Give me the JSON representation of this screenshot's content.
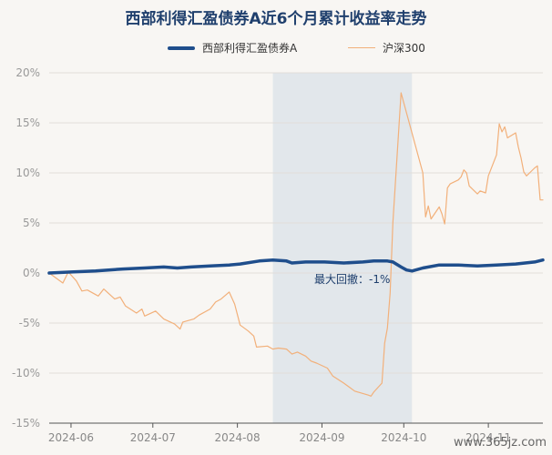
{
  "chart_data": {
    "type": "line",
    "title": "西部利得汇盈债券A近6个月累计收益率走势",
    "ylim": [
      -15,
      20
    ],
    "yticks": [
      -15,
      -10,
      -5,
      0,
      5,
      10,
      15,
      20
    ],
    "ytick_labels": [
      "-15%",
      "-10%",
      "-5%",
      "0%",
      "5%",
      "10%",
      "15%",
      "20%"
    ],
    "xlim": [
      "2024-05-24",
      "2024-11-21"
    ],
    "xticks": [
      "2024-06-01",
      "2024-07-01",
      "2024-08-01",
      "2024-09-01",
      "2024-10-01",
      "2024-11-01"
    ],
    "xtick_labels": [
      "2024-06",
      "2024-07",
      "2024-08",
      "2024-09",
      "2024-10",
      "2024-11"
    ],
    "legend_position": "top-center",
    "grid": "horizontal",
    "series": [
      {
        "name": "西部利得汇盈债券A",
        "color": "#1f4e8c",
        "points": [
          [
            "2024-05-24",
            0.0
          ],
          [
            "2024-06-01",
            0.1
          ],
          [
            "2024-06-10",
            0.2
          ],
          [
            "2024-06-20",
            0.4
          ],
          [
            "2024-06-28",
            0.5
          ],
          [
            "2024-07-05",
            0.6
          ],
          [
            "2024-07-10",
            0.5
          ],
          [
            "2024-07-15",
            0.6
          ],
          [
            "2024-07-22",
            0.7
          ],
          [
            "2024-07-29",
            0.8
          ],
          [
            "2024-08-02",
            0.9
          ],
          [
            "2024-08-09",
            1.2
          ],
          [
            "2024-08-14",
            1.3
          ],
          [
            "2024-08-19",
            1.2
          ],
          [
            "2024-08-21",
            1.0
          ],
          [
            "2024-08-26",
            1.1
          ],
          [
            "2024-09-02",
            1.1
          ],
          [
            "2024-09-09",
            1.0
          ],
          [
            "2024-09-16",
            1.1
          ],
          [
            "2024-09-20",
            1.2
          ],
          [
            "2024-09-25",
            1.2
          ],
          [
            "2024-09-27",
            1.1
          ],
          [
            "2024-09-30",
            0.6
          ],
          [
            "2024-10-02",
            0.3
          ],
          [
            "2024-10-04",
            0.2
          ],
          [
            "2024-10-08",
            0.5
          ],
          [
            "2024-10-14",
            0.8
          ],
          [
            "2024-10-21",
            0.8
          ],
          [
            "2024-10-28",
            0.7
          ],
          [
            "2024-11-04",
            0.8
          ],
          [
            "2024-11-11",
            0.9
          ],
          [
            "2024-11-18",
            1.1
          ],
          [
            "2024-11-21",
            1.3
          ]
        ]
      },
      {
        "name": "沪深300",
        "color": "#f2b07a",
        "points": [
          [
            "2024-05-24",
            0.0
          ],
          [
            "2024-05-27",
            -0.6
          ],
          [
            "2024-05-29",
            -1.0
          ],
          [
            "2024-05-31",
            0.1
          ],
          [
            "2024-06-03",
            -0.8
          ],
          [
            "2024-06-05",
            -1.8
          ],
          [
            "2024-06-07",
            -1.7
          ],
          [
            "2024-06-11",
            -2.3
          ],
          [
            "2024-06-13",
            -1.6
          ],
          [
            "2024-06-17",
            -2.6
          ],
          [
            "2024-06-19",
            -2.4
          ],
          [
            "2024-06-21",
            -3.3
          ],
          [
            "2024-06-25",
            -4.0
          ],
          [
            "2024-06-27",
            -3.6
          ],
          [
            "2024-06-28",
            -4.3
          ],
          [
            "2024-07-02",
            -3.8
          ],
          [
            "2024-07-05",
            -4.6
          ],
          [
            "2024-07-09",
            -5.1
          ],
          [
            "2024-07-11",
            -5.6
          ],
          [
            "2024-07-12",
            -4.9
          ],
          [
            "2024-07-16",
            -4.6
          ],
          [
            "2024-07-18",
            -4.2
          ],
          [
            "2024-07-22",
            -3.6
          ],
          [
            "2024-07-24",
            -2.9
          ],
          [
            "2024-07-26",
            -2.6
          ],
          [
            "2024-07-29",
            -1.9
          ],
          [
            "2024-07-31",
            -3.1
          ],
          [
            "2024-08-02",
            -5.2
          ],
          [
            "2024-08-05",
            -5.8
          ],
          [
            "2024-08-07",
            -6.3
          ],
          [
            "2024-08-08",
            -7.4
          ],
          [
            "2024-08-12",
            -7.3
          ],
          [
            "2024-08-14",
            -7.6
          ],
          [
            "2024-08-16",
            -7.5
          ],
          [
            "2024-08-19",
            -7.6
          ],
          [
            "2024-08-21",
            -8.1
          ],
          [
            "2024-08-23",
            -7.9
          ],
          [
            "2024-08-26",
            -8.3
          ],
          [
            "2024-08-28",
            -8.8
          ],
          [
            "2024-08-30",
            -9.0
          ],
          [
            "2024-09-03",
            -9.5
          ],
          [
            "2024-09-05",
            -10.3
          ],
          [
            "2024-09-09",
            -11.0
          ],
          [
            "2024-09-11",
            -11.4
          ],
          [
            "2024-09-13",
            -11.8
          ],
          [
            "2024-09-18",
            -12.2
          ],
          [
            "2024-09-19",
            -12.3
          ],
          [
            "2024-09-20",
            -11.9
          ],
          [
            "2024-09-23",
            -11.0
          ],
          [
            "2024-09-24",
            -7.0
          ],
          [
            "2024-09-25",
            -5.5
          ],
          [
            "2024-09-26",
            -2.0
          ],
          [
            "2024-09-27",
            5.0
          ],
          [
            "2024-09-30",
            18.0
          ],
          [
            "2024-10-08",
            10.0
          ],
          [
            "2024-10-09",
            5.6
          ],
          [
            "2024-10-10",
            6.7
          ],
          [
            "2024-10-11",
            5.4
          ],
          [
            "2024-10-14",
            6.6
          ],
          [
            "2024-10-15",
            5.9
          ],
          [
            "2024-10-16",
            4.9
          ],
          [
            "2024-10-17",
            8.5
          ],
          [
            "2024-10-18",
            8.9
          ],
          [
            "2024-10-21",
            9.3
          ],
          [
            "2024-10-22",
            9.6
          ],
          [
            "2024-10-23",
            10.3
          ],
          [
            "2024-10-24",
            10.0
          ],
          [
            "2024-10-25",
            8.7
          ],
          [
            "2024-10-28",
            7.9
          ],
          [
            "2024-10-29",
            8.2
          ],
          [
            "2024-10-31",
            8.0
          ],
          [
            "2024-11-01",
            9.7
          ],
          [
            "2024-11-04",
            11.8
          ],
          [
            "2024-11-05",
            14.9
          ],
          [
            "2024-11-06",
            14.1
          ],
          [
            "2024-11-07",
            14.6
          ],
          [
            "2024-11-08",
            13.5
          ],
          [
            "2024-11-11",
            14.0
          ],
          [
            "2024-11-12",
            12.6
          ],
          [
            "2024-11-13",
            11.5
          ],
          [
            "2024-11-14",
            10.1
          ],
          [
            "2024-11-15",
            9.7
          ],
          [
            "2024-11-18",
            10.5
          ],
          [
            "2024-11-19",
            10.7
          ],
          [
            "2024-11-20",
            7.3
          ],
          [
            "2024-11-21",
            7.3
          ]
        ]
      }
    ],
    "annotation": {
      "text": "最大回撤：-1%",
      "shaded_range": [
        "2024-08-14",
        "2024-10-04"
      ]
    }
  },
  "watermark": {
    "text": "www.365jz.com"
  }
}
